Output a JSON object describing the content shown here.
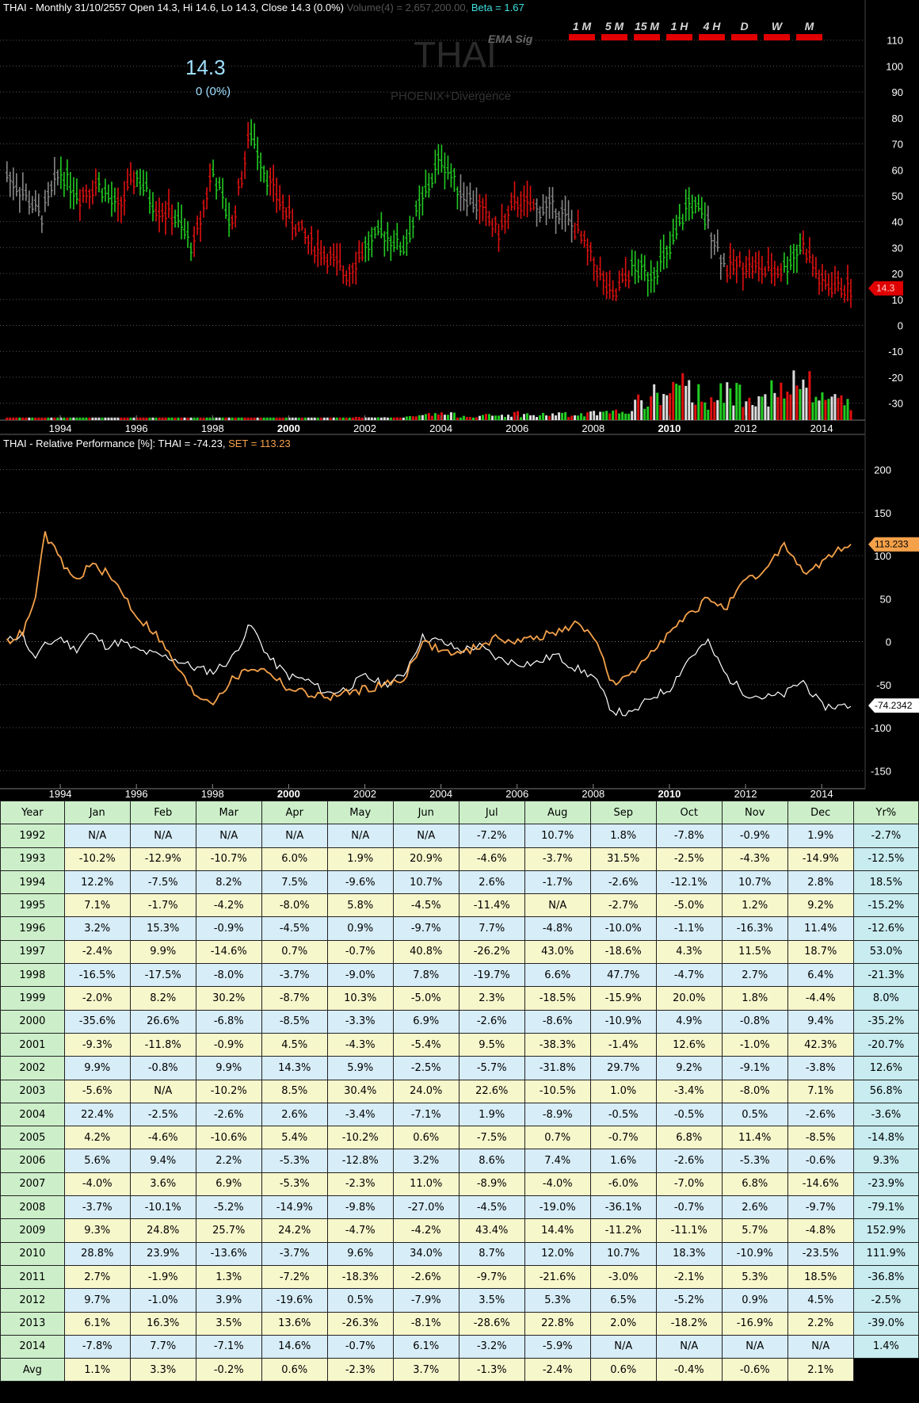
{
  "header": {
    "title": "THAI - Monthly 31/10/2557 Open 14.3, Hi 14.6, Lo 14.3, Close 14.3 (0.0%)",
    "volume": "Volume(4) = 2,657,200.00,",
    "beta": "Beta = 1.67",
    "ema_sig": "EMA Sig",
    "watermark": "THAI",
    "sub_watermark": "PHOENIX+Divergence",
    "last_price": "14.3",
    "last_change": "0 (0%)",
    "price_tag": "14.3"
  },
  "timeframes": [
    "1 M",
    "5 M",
    "15 M",
    "1 H",
    "4 H",
    "D",
    "W",
    "M"
  ],
  "relperf_header": {
    "label": "THAI - Relative Performance [%]: THAI = -74.23,",
    "set_label": "SET = 113.23",
    "thai_tag": "-74.2342",
    "set_tag": "113.233"
  },
  "colors": {
    "up": "#22cc22",
    "down": "#e01010",
    "neutral": "#888888",
    "thai": "#ffffff",
    "set": "#f4a14a",
    "volume_white": "#dddddd"
  },
  "chart_data": [
    {
      "type": "line",
      "name": "price",
      "title": "THAI - Monthly",
      "x": [
        1992.6,
        1993.0,
        1993.5,
        1994.0,
        1994.5,
        1995.0,
        1995.5,
        1996.0,
        1996.5,
        1997.0,
        1997.5,
        1998.0,
        1998.5,
        1999.0,
        1999.5,
        2000.0,
        2000.5,
        2001.0,
        2001.5,
        2002.0,
        2002.5,
        2003.0,
        2003.5,
        2004.0,
        2004.5,
        2005.0,
        2005.5,
        2006.0,
        2006.5,
        2007.0,
        2007.5,
        2008.0,
        2008.5,
        2009.0,
        2009.5,
        2010.0,
        2010.5,
        2011.0,
        2011.5,
        2012.0,
        2012.5,
        2013.0,
        2013.5,
        2014.0,
        2014.5,
        2014.8
      ],
      "y": [
        58,
        52,
        42,
        60,
        50,
        55,
        45,
        58,
        46,
        42,
        30,
        60,
        38,
        75,
        55,
        42,
        33,
        27,
        20,
        30,
        36,
        30,
        48,
        65,
        52,
        46,
        36,
        48,
        45,
        46,
        38,
        25,
        10,
        22,
        20,
        28,
        48,
        40,
        22,
        24,
        21,
        22,
        32,
        16,
        15,
        14.3
      ],
      "trend": [
        "neutral",
        "neutral",
        "neutral",
        "up",
        "down",
        "up",
        "down",
        "up",
        "down",
        "up",
        "down",
        "up",
        "down",
        "up",
        "down",
        "down",
        "down",
        "down",
        "down",
        "up",
        "up",
        "up",
        "up",
        "up",
        "neutral",
        "down",
        "down",
        "down",
        "neutral",
        "neutral",
        "down",
        "down",
        "down",
        "up",
        "up",
        "up",
        "up",
        "neutral",
        "down",
        "down",
        "down",
        "up",
        "down",
        "down",
        "down",
        "down"
      ],
      "ylim": [
        -35,
        120
      ],
      "yticks": [
        -30,
        -20,
        -10,
        0,
        10,
        20,
        30,
        40,
        50,
        60,
        70,
        80,
        90,
        100,
        110
      ],
      "xticks": [
        "1994",
        "1996",
        "1998",
        "2000",
        "2002",
        "2004",
        "2006",
        "2008",
        "2010",
        "2012",
        "2014"
      ],
      "volume": [
        0,
        0,
        0,
        0,
        0,
        0,
        0,
        0,
        0,
        0,
        0,
        0,
        0,
        0,
        0,
        0,
        0,
        0,
        1,
        1,
        1,
        1,
        2,
        3,
        2,
        2,
        2,
        3,
        2,
        3,
        2,
        3,
        3,
        6,
        11,
        13,
        15,
        10,
        12,
        13,
        13,
        12,
        18,
        10,
        10,
        9
      ]
    },
    {
      "type": "line",
      "name": "relative-performance",
      "title": "THAI - Relative Performance [%]",
      "x": [
        1992.6,
        1993.0,
        1993.3,
        1993.6,
        1994.0,
        1994.4,
        1994.8,
        1995.2,
        1995.6,
        1996.0,
        1996.5,
        1997.0,
        1997.5,
        1998.0,
        1998.5,
        1999.0,
        1999.5,
        2000.0,
        2000.5,
        2001.0,
        2001.5,
        2002.0,
        2002.5,
        2003.0,
        2003.5,
        2004.0,
        2004.5,
        2005.0,
        2005.5,
        2006.0,
        2006.5,
        2007.0,
        2007.5,
        2008.0,
        2008.5,
        2009.0,
        2009.5,
        2010.0,
        2010.5,
        2011.0,
        2011.5,
        2012.0,
        2012.5,
        2013.0,
        2013.5,
        2014.0,
        2014.5,
        2014.8
      ],
      "series": [
        {
          "name": "THAI",
          "values": [
            0,
            10,
            -20,
            -5,
            5,
            -10,
            10,
            -5,
            0,
            -10,
            -15,
            -20,
            -30,
            -35,
            -20,
            20,
            -20,
            -40,
            -45,
            -60,
            -55,
            -40,
            -50,
            -40,
            5,
            0,
            -10,
            -5,
            -20,
            -25,
            -25,
            -15,
            -30,
            -40,
            -80,
            -85,
            -65,
            -55,
            -20,
            0,
            -40,
            -60,
            -65,
            -62,
            -45,
            -75,
            -75,
            -74.23
          ]
        },
        {
          "name": "SET",
          "values": [
            0,
            10,
            40,
            125,
            95,
            70,
            90,
            80,
            60,
            30,
            10,
            -25,
            -60,
            -70,
            -45,
            -30,
            -35,
            -55,
            -60,
            -65,
            -60,
            -55,
            -50,
            -45,
            0,
            -10,
            -15,
            -5,
            5,
            0,
            5,
            10,
            20,
            10,
            -50,
            -40,
            -10,
            10,
            30,
            50,
            40,
            70,
            80,
            115,
            80,
            90,
            110,
            113.23
          ]
        }
      ],
      "ylim": [
        -170,
        230
      ],
      "yticks": [
        -150,
        -100,
        -50,
        0,
        50,
        100,
        150,
        200
      ],
      "xticks": [
        "1994",
        "1996",
        "1998",
        "2000",
        "2002",
        "2004",
        "2006",
        "2008",
        "2010",
        "2012",
        "2014"
      ]
    },
    {
      "type": "table",
      "name": "monthly-returns",
      "columns": [
        "Year",
        "Jan",
        "Feb",
        "Mar",
        "Apr",
        "May",
        "Jun",
        "Jul",
        "Aug",
        "Sep",
        "Oct",
        "Nov",
        "Dec",
        "Yr%"
      ],
      "rows": [
        [
          "1992",
          "N/A",
          "N/A",
          "N/A",
          "N/A",
          "N/A",
          "N/A",
          "-7.2%",
          "10.7%",
          "1.8%",
          "-7.8%",
          "-0.9%",
          "1.9%",
          "-2.7%"
        ],
        [
          "1993",
          "-10.2%",
          "-12.9%",
          "-10.7%",
          "6.0%",
          "1.9%",
          "20.9%",
          "-4.6%",
          "-3.7%",
          "31.5%",
          "-2.5%",
          "-4.3%",
          "-14.9%",
          "-12.5%"
        ],
        [
          "1994",
          "12.2%",
          "-7.5%",
          "8.2%",
          "7.5%",
          "-9.6%",
          "10.7%",
          "2.6%",
          "-1.7%",
          "-2.6%",
          "-12.1%",
          "10.7%",
          "2.8%",
          "18.5%"
        ],
        [
          "1995",
          "7.1%",
          "-1.7%",
          "-4.2%",
          "-8.0%",
          "5.8%",
          "-4.5%",
          "-11.4%",
          "N/A",
          "-2.7%",
          "-5.0%",
          "1.2%",
          "9.2%",
          "-15.2%"
        ],
        [
          "1996",
          "3.2%",
          "15.3%",
          "-0.9%",
          "-4.5%",
          "0.9%",
          "-9.7%",
          "7.7%",
          "-4.8%",
          "-10.0%",
          "-1.1%",
          "-16.3%",
          "11.4%",
          "-12.6%"
        ],
        [
          "1997",
          "-2.4%",
          "9.9%",
          "-14.6%",
          "0.7%",
          "-0.7%",
          "40.8%",
          "-26.2%",
          "43.0%",
          "-18.6%",
          "4.3%",
          "11.5%",
          "18.7%",
          "53.0%"
        ],
        [
          "1998",
          "-16.5%",
          "-17.5%",
          "-8.0%",
          "-3.7%",
          "-9.0%",
          "7.8%",
          "-19.7%",
          "6.6%",
          "47.7%",
          "-4.7%",
          "2.7%",
          "6.4%",
          "-21.3%"
        ],
        [
          "1999",
          "-2.0%",
          "8.2%",
          "30.2%",
          "-8.7%",
          "10.3%",
          "-5.0%",
          "2.3%",
          "-18.5%",
          "-15.9%",
          "20.0%",
          "1.8%",
          "-4.4%",
          "8.0%"
        ],
        [
          "2000",
          "-35.6%",
          "26.6%",
          "-6.8%",
          "-8.5%",
          "-3.3%",
          "6.9%",
          "-2.6%",
          "-8.6%",
          "-10.9%",
          "4.9%",
          "-0.8%",
          "9.4%",
          "-35.2%"
        ],
        [
          "2001",
          "-9.3%",
          "-11.8%",
          "-0.9%",
          "4.5%",
          "-4.3%",
          "-5.4%",
          "9.5%",
          "-38.3%",
          "-1.4%",
          "12.6%",
          "-1.0%",
          "42.3%",
          "-20.7%"
        ],
        [
          "2002",
          "9.9%",
          "-0.8%",
          "9.9%",
          "14.3%",
          "5.9%",
          "-2.5%",
          "-5.7%",
          "-31.8%",
          "29.7%",
          "9.2%",
          "-9.1%",
          "-3.8%",
          "12.6%"
        ],
        [
          "2003",
          "-5.6%",
          "N/A",
          "-10.2%",
          "8.5%",
          "30.4%",
          "24.0%",
          "22.6%",
          "-10.5%",
          "1.0%",
          "-3.4%",
          "-8.0%",
          "7.1%",
          "56.8%"
        ],
        [
          "2004",
          "22.4%",
          "-2.5%",
          "-2.6%",
          "2.6%",
          "-3.4%",
          "-7.1%",
          "1.9%",
          "-8.9%",
          "-0.5%",
          "-0.5%",
          "0.5%",
          "-2.6%",
          "-3.6%"
        ],
        [
          "2005",
          "4.2%",
          "-4.6%",
          "-10.6%",
          "5.4%",
          "-10.2%",
          "0.6%",
          "-7.5%",
          "0.7%",
          "-0.7%",
          "6.8%",
          "11.4%",
          "-8.5%",
          "-14.8%"
        ],
        [
          "2006",
          "5.6%",
          "9.4%",
          "2.2%",
          "-5.3%",
          "-12.8%",
          "3.2%",
          "8.6%",
          "7.4%",
          "1.6%",
          "-2.6%",
          "-5.3%",
          "-0.6%",
          "9.3%"
        ],
        [
          "2007",
          "-4.0%",
          "3.6%",
          "6.9%",
          "-5.3%",
          "-2.3%",
          "11.0%",
          "-8.9%",
          "-4.0%",
          "-6.0%",
          "-7.0%",
          "6.8%",
          "-14.6%",
          "-23.9%"
        ],
        [
          "2008",
          "-3.7%",
          "-10.1%",
          "-5.2%",
          "-14.9%",
          "-9.8%",
          "-27.0%",
          "-4.5%",
          "-19.0%",
          "-36.1%",
          "-0.7%",
          "2.6%",
          "-9.7%",
          "-79.1%"
        ],
        [
          "2009",
          "9.3%",
          "24.8%",
          "25.7%",
          "24.2%",
          "-4.7%",
          "-4.2%",
          "43.4%",
          "14.4%",
          "-11.2%",
          "-11.1%",
          "5.7%",
          "-4.8%",
          "152.9%"
        ],
        [
          "2010",
          "28.8%",
          "23.9%",
          "-13.6%",
          "-3.7%",
          "9.6%",
          "34.0%",
          "8.7%",
          "12.0%",
          "10.7%",
          "18.3%",
          "-10.9%",
          "-23.5%",
          "111.9%"
        ],
        [
          "2011",
          "2.7%",
          "-1.9%",
          "1.3%",
          "-7.2%",
          "-18.3%",
          "-2.6%",
          "-9.7%",
          "-21.6%",
          "-3.0%",
          "-2.1%",
          "5.3%",
          "18.5%",
          "-36.8%"
        ],
        [
          "2012",
          "9.7%",
          "-1.0%",
          "3.9%",
          "-19.6%",
          "0.5%",
          "-7.9%",
          "3.5%",
          "5.3%",
          "6.5%",
          "-5.2%",
          "0.9%",
          "4.5%",
          "-2.5%"
        ],
        [
          "2013",
          "6.1%",
          "16.3%",
          "3.5%",
          "13.6%",
          "-26.3%",
          "-8.1%",
          "-28.6%",
          "22.8%",
          "2.0%",
          "-18.2%",
          "-16.9%",
          "2.2%",
          "-39.0%"
        ],
        [
          "2014",
          "-7.8%",
          "7.7%",
          "-7.1%",
          "14.6%",
          "-0.7%",
          "6.1%",
          "-3.2%",
          "-5.9%",
          "N/A",
          "N/A",
          "N/A",
          "N/A",
          "1.4%"
        ]
      ],
      "avg_row": [
        "Avg",
        "1.1%",
        "3.3%",
        "-0.2%",
        "0.6%",
        "-2.3%",
        "3.7%",
        "-1.3%",
        "-2.4%",
        "0.6%",
        "-0.4%",
        "-0.6%",
        "2.1%"
      ]
    }
  ]
}
